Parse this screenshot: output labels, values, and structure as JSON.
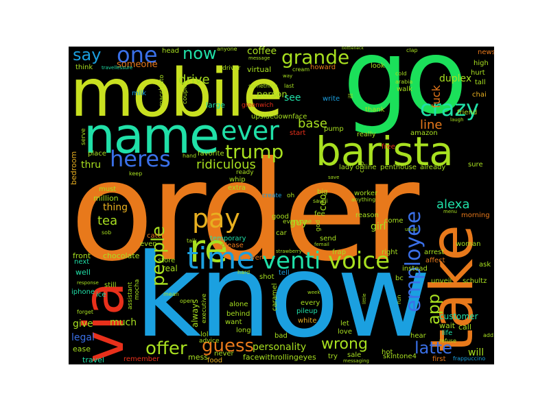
{
  "colors": {
    "background": "#000000",
    "frame": "#ffffff"
  },
  "words": {
    "order": "order",
    "know": "know",
    "go": "go",
    "mobile": "mobile",
    "name": "name",
    "barista": "barista",
    "take": "take",
    "via": "via",
    "time": "time",
    "venti": "venti",
    "voice": "voice",
    "pay": "pay",
    "re": "re",
    "ever": "ever",
    "crazy": "crazy",
    "grande": "grande",
    "trump": "trump",
    "heres": "heres",
    "one": "one",
    "say": "say",
    "now": "now",
    "employee": "employee",
    "latte": "latte",
    "guess": "guess",
    "offer": "offer",
    "wrong": "wrong",
    "people": "people",
    "alexa": "alexa",
    "app": "app",
    "ridiculous": "ridiculous",
    "drive": "drive",
    "coffee": "coffee",
    "base": "base",
    "line": "line",
    "tea": "tea",
    "thru": "thru",
    "someone": "someone",
    "personality": "personality",
    "legal": "legal",
    "give": "give",
    "much": "much",
    "will": "will",
    "fuck": "fuck",
    "duplex": "duplex",
    "customer": "customer",
    "girl": "girl",
    "guy": "guy",
    "thing": "thing",
    "person": "person",
    "see": "see",
    "ceo": "ceo",
    "million": "million",
    "must": "must",
    "bedroom": "bedroom",
    "chocolate": "chocolate",
    "front": "front",
    "next": "next",
    "well": "well",
    "iphone": "iphone",
    "ice": "ice",
    "travel": "travel",
    "ease": "ease",
    "remember": "remember",
    "mess": "mess",
    "food": "food",
    "facewithrollingeyes": "facewithrollingeyes",
    "skintone4": "skintone4",
    "first": "first",
    "frappuccino": "frappuccino",
    "hot": "hot",
    "wait": "wait",
    "life": "life",
    "call": "call",
    "add": "add",
    "high": "high",
    "hurt": "hurt",
    "tall": "tall",
    "chai": "chai",
    "friend": "friend",
    "news": "news",
    "howard": "howard",
    "virtual": "virtual",
    "driver": "driver",
    "head": "head",
    "think": "think",
    "milk": "milk",
    "large": "large",
    "greenwich": "greenwich",
    "write": "write",
    "pump": "pump",
    "really": "really",
    "start": "start",
    "thank": "thank",
    "look": "look",
    "walk": "walk",
    "amazon": "amazon",
    "free": "free",
    "penthouse": "penthouse",
    "already": "already",
    "sure": "sure",
    "morning": "morning",
    "arrest": "arrest",
    "affect": "affect",
    "woman": "woman",
    "ask": "ask",
    "unveil": "unveil",
    "schultz": "schultz",
    "instead": "instead",
    "right": "right",
    "bc": "bc",
    "hear": "hear",
    "frap": "frap",
    "send": "send",
    "worker": "worker",
    "reason": "reason",
    "come": "come",
    "fee": "fee",
    "big": "big",
    "lady": "lady",
    "online": "online",
    "extra": "extra",
    "ready": "ready",
    "favorite": "favorite",
    "place": "place",
    "serve": "serve",
    "catch": "catch",
    "even": "even",
    "temporary": "temporary",
    "please": "please",
    "store": "store",
    "real": "real",
    "shot": "shot",
    "tell": "tell",
    "always": "always",
    "alone": "alone",
    "behind": "behind",
    "want": "want",
    "long": "long",
    "bad": "bad",
    "caramel": "caramel",
    "every": "every",
    "pileup": "pileup",
    "white": "white",
    "let": "let",
    "love": "love",
    "try": "try",
    "sale": "sale",
    "never": "never",
    "lol": "lol",
    "advice": "advice",
    "executive": "executive",
    "mocha": "mocha",
    "assistant": "assistant",
    "still": "still",
    "upsidedownface": "upsidedownface",
    "forever": "forever",
    "whip": "whip",
    "create": "create",
    "oh": "oh",
    "good": "good",
    "everyone": "everyone",
    "car": "car",
    "anything": "anything",
    "god": "god",
    "saudi": "saudi",
    "something": "something",
    "last": "last",
    "cream": "cream",
    "ill": "ill",
    "cold": "cold",
    "arabia": "arabia",
    "macchiato": "macchiato",
    "couple": "couple",
    "travellessure": "travellessure",
    "anyone": "anyone",
    "message": "message",
    "clap": "clap",
    "laugh": "laugh",
    "cup": "cup",
    "hand": "hand",
    "keep": "keep",
    "sob": "sob",
    "talk": "talk",
    "mean": "mean",
    "open": "open",
    "hard": "hard",
    "response": "response",
    "forget": "forget",
    "refuse": "refuse",
    "messaging": "messaging",
    "run": "run",
    "little": "little",
    "week": "week",
    "usual": "usual",
    "menu": "menu",
    "femail": "femail",
    "strawberry": "strawberry",
    "bottleneck": "bottleneck",
    "say2": "way",
    "save": "save"
  }
}
